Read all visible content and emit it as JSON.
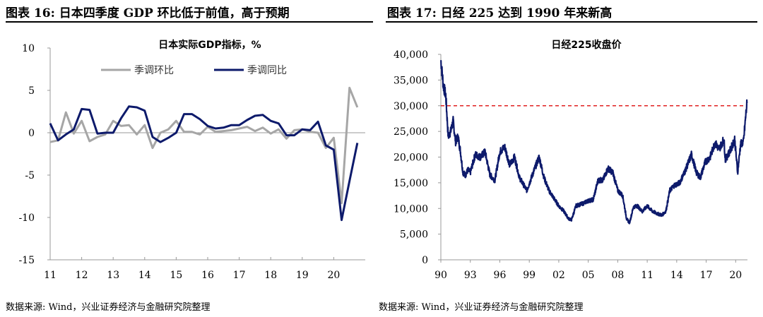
{
  "header": {
    "left_title": "图表 16:  日本四季度 GDP 环比低于前值，高于预期",
    "right_title": "图表 17:  日经 225 达到 1990 年来新高"
  },
  "footer": {
    "left_source": "数据来源:  Wind，兴业证券经济与金融研究院整理",
    "right_source": "数据来源:  Wind，兴业证券经济与金融研究院整理"
  },
  "chart_data": [
    {
      "type": "line",
      "title": "日本实际GDP指标，%",
      "ylim": [
        -15,
        10
      ],
      "yticks": [
        "10",
        "5",
        "0",
        "-5",
        "-10",
        "-15"
      ],
      "xticks": [
        "11",
        "12",
        "13",
        "14",
        "15",
        "16",
        "17",
        "18",
        "19",
        "20"
      ],
      "legend_position": "top",
      "x": [
        "2011Q1",
        "2011Q2",
        "2011Q3",
        "2011Q4",
        "2012Q1",
        "2012Q2",
        "2012Q3",
        "2012Q4",
        "2013Q1",
        "2013Q2",
        "2013Q3",
        "2013Q4",
        "2014Q1",
        "2014Q2",
        "2014Q3",
        "2014Q4",
        "2015Q1",
        "2015Q2",
        "2015Q3",
        "2015Q4",
        "2016Q1",
        "2016Q2",
        "2016Q3",
        "2016Q4",
        "2017Q1",
        "2017Q2",
        "2017Q3",
        "2017Q4",
        "2018Q1",
        "2018Q2",
        "2018Q3",
        "2018Q4",
        "2019Q1",
        "2019Q2",
        "2019Q3",
        "2019Q4",
        "2020Q1",
        "2020Q2",
        "2020Q3",
        "2020Q4"
      ],
      "series": [
        {
          "name": "季调环比",
          "color": "#a6a6a6",
          "values": [
            -1.1,
            -0.9,
            2.4,
            -0.1,
            1.4,
            -1.0,
            -0.5,
            -0.2,
            1.4,
            0.8,
            0.9,
            -0.2,
            0.9,
            -1.8,
            0.0,
            0.4,
            1.4,
            0.1,
            0.1,
            -0.2,
            0.7,
            0.1,
            0.2,
            0.3,
            0.5,
            0.7,
            0.2,
            0.6,
            -0.1,
            0.4,
            -0.7,
            0.3,
            0.4,
            0.1,
            0.0,
            -1.8,
            -0.6,
            -8.3,
            5.3,
            3.0
          ]
        },
        {
          "name": "季调同比",
          "color": "#0d1a6b",
          "values": [
            1.1,
            -0.9,
            -0.2,
            0.4,
            2.8,
            2.7,
            -0.1,
            0.0,
            0.0,
            1.7,
            3.1,
            3.0,
            2.6,
            -0.5,
            -1.1,
            -0.6,
            0.0,
            2.2,
            2.2,
            1.6,
            0.8,
            0.5,
            0.6,
            0.9,
            0.9,
            1.5,
            2.0,
            2.1,
            1.4,
            1.1,
            -0.3,
            -0.3,
            0.4,
            0.3,
            1.3,
            -1.5,
            -2.0,
            -10.3,
            -5.7,
            -1.2
          ]
        }
      ]
    },
    {
      "type": "line",
      "title": "日经225收盘价",
      "ylim": [
        0,
        40000
      ],
      "yticks": [
        "40,000",
        "35,000",
        "30,000",
        "25,000",
        "20,000",
        "15,000",
        "10,000",
        "5,000",
        "0"
      ],
      "xlim": [
        1990,
        2021.2
      ],
      "xticks": [
        "90",
        "93",
        "96",
        "99",
        "02",
        "05",
        "08",
        "11",
        "14",
        "17",
        "20"
      ],
      "reference_line": {
        "value": 30000,
        "color": "#e02020",
        "style": "dashed"
      },
      "series": [
        {
          "name": "",
          "color": "#0d1a6b",
          "x": [
            1990.0,
            1990.25,
            1990.5,
            1990.75,
            1991.0,
            1991.25,
            1991.5,
            1991.75,
            1992.0,
            1992.25,
            1992.5,
            1992.75,
            1993.0,
            1993.5,
            1994.0,
            1994.5,
            1995.0,
            1995.5,
            1996.0,
            1996.5,
            1997.0,
            1997.5,
            1998.0,
            1998.75,
            1999.5,
            2000.0,
            2000.5,
            2001.0,
            2001.5,
            2002.0,
            2002.5,
            2003.0,
            2003.3,
            2003.75,
            2004.5,
            2005.0,
            2005.5,
            2006.0,
            2006.5,
            2007.0,
            2007.5,
            2008.0,
            2008.5,
            2008.9,
            2009.2,
            2009.6,
            2010.0,
            2010.5,
            2011.0,
            2011.5,
            2012.0,
            2012.5,
            2012.9,
            2013.3,
            2013.75,
            2014.3,
            2014.9,
            2015.5,
            2016.0,
            2016.4,
            2016.9,
            2017.4,
            2017.9,
            2018.3,
            2018.8,
            2018.95,
            2019.5,
            2019.9,
            2020.2,
            2020.5,
            2020.8,
            2021.0,
            2021.15
          ],
          "values": [
            38900,
            34000,
            32000,
            24000,
            25000,
            27000,
            23000,
            24000,
            21000,
            17000,
            16500,
            17500,
            17000,
            20500,
            20000,
            21000,
            16500,
            15500,
            21000,
            22000,
            18500,
            20000,
            16000,
            13500,
            17500,
            20000,
            16000,
            13500,
            12000,
            10500,
            9500,
            8000,
            7800,
            10500,
            11000,
            11500,
            11700,
            15500,
            15500,
            17800,
            17000,
            13500,
            12500,
            8000,
            7200,
            10300,
            10500,
            9400,
            10500,
            9500,
            9000,
            8700,
            9500,
            13500,
            14500,
            15000,
            17500,
            20500,
            17000,
            16000,
            19000,
            20000,
            22800,
            21500,
            23500,
            19500,
            21500,
            23500,
            17000,
            22500,
            23000,
            27500,
            30500
          ]
        }
      ]
    }
  ]
}
